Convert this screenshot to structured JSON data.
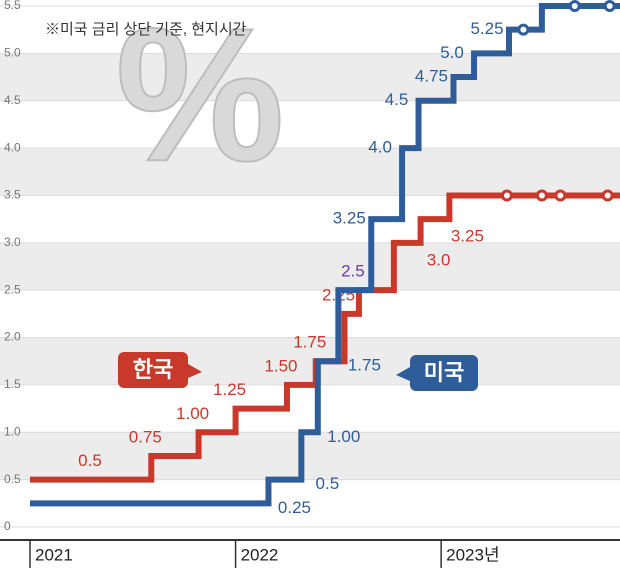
{
  "chart_data": {
    "type": "step",
    "note": "※미국 금리 상단 기준, 현지시간",
    "watermark": "%",
    "xlim": [
      2021,
      2023.87
    ],
    "xticks": [
      2021,
      2022,
      {
        "value": 2023,
        "label": "2023년"
      }
    ],
    "ylim": [
      0,
      5.5
    ],
    "yticks": [
      0,
      0.5,
      {
        "value": 1,
        "label": "1.0"
      },
      1.5,
      {
        "value": 2,
        "label": "2.0"
      },
      2.5,
      {
        "value": 3,
        "label": "3.0"
      },
      3.5,
      {
        "value": 4,
        "label": "4.0"
      },
      4.5,
      {
        "value": 5,
        "label": "5.0"
      },
      5.5
    ],
    "grid": true,
    "series": [
      {
        "name": "한국",
        "color": "#c8392b",
        "x": [
          2021,
          2021.59,
          2021.82,
          2022.0,
          2022.25,
          2022.39,
          2022.53,
          2022.6,
          2022.77,
          2022.9,
          2023.04,
          2023.32,
          2023.49,
          2023.58,
          2023.81
        ],
        "values": [
          0.5,
          0.75,
          1,
          1.25,
          1.5,
          1.75,
          2.25,
          2.5,
          3,
          3.25,
          3.5,
          3.5,
          3.5,
          3.5,
          3.5
        ],
        "value_labels": [
          "0.5",
          "0.75",
          "1.00",
          "1.25",
          "1.50",
          "1.75",
          "2.25",
          "2.5",
          "3.0",
          "3.25",
          null,
          null,
          null,
          null,
          null
        ]
      },
      {
        "name": "미국",
        "color": "#2e5d9a",
        "x": [
          2021,
          2022.16,
          2022.32,
          2022.4,
          2022.5,
          2022.66,
          2022.81,
          2022.89,
          2023.06,
          2023.16,
          2023.33,
          2023.4,
          2023.49,
          2023.65,
          2023.82
        ],
        "values": [
          0.25,
          0.5,
          1,
          1.75,
          2.5,
          3.25,
          4,
          4.5,
          4.75,
          5,
          5.25,
          5.25,
          5.5,
          5.5,
          5.5
        ],
        "value_labels": [
          "0.25",
          "0.5",
          "1.00",
          "1.75",
          null,
          "3.25",
          "4.0",
          "4.5",
          "4.75",
          "5.0",
          "5.25",
          null,
          null,
          null,
          null
        ]
      }
    ]
  }
}
